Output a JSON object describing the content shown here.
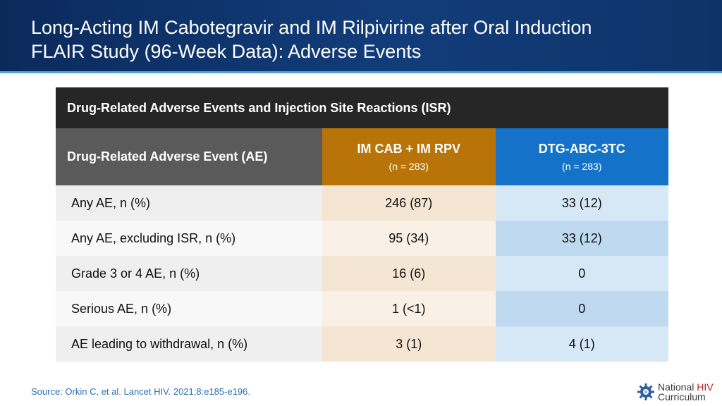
{
  "slide": {
    "title_line1": "Long-Acting IM Cabotegravir and IM Rilpivirine after Oral Induction",
    "title_line2": "FLAIR Study (96-Week Data): Adverse Events"
  },
  "table": {
    "caption": "Drug-Related Adverse Events and Injection Site Reactions (ISR)",
    "row_header": "Drug-Related Adverse Event (AE)",
    "columns": [
      {
        "name": "IM CAB + IM RPV",
        "n": "(n = 283)",
        "color": "#b87409"
      },
      {
        "name": "DTG-ABC-3TC",
        "n": "(n = 283)",
        "color": "#1473c9"
      }
    ],
    "rows": [
      {
        "label": "Any AE, n (%)",
        "cab": "246 (87)",
        "dtg": "33 (12)"
      },
      {
        "label": "Any AE, excluding ISR, n (%)",
        "cab": "95 (34)",
        "dtg": "33 (12)"
      },
      {
        "label": "Grade 3 or 4 AE, n (%)",
        "cab": "16 (6)",
        "dtg": "0"
      },
      {
        "label": "Serious AE, n (%)",
        "cab": "1 (<1)",
        "dtg": "0"
      },
      {
        "label": "AE leading to withdrawal, n (%)",
        "cab": "3 (1)",
        "dtg": "4 (1)"
      }
    ]
  },
  "footer": {
    "source": "Source: Orkin C, et al. Lancet HIV. 2021;8:e185-e196.",
    "logo_line1_part1": "National",
    "logo_line1_part2": "HIV",
    "logo_line2": "Curriculum",
    "logo_icon": "gear-logo-icon"
  }
}
